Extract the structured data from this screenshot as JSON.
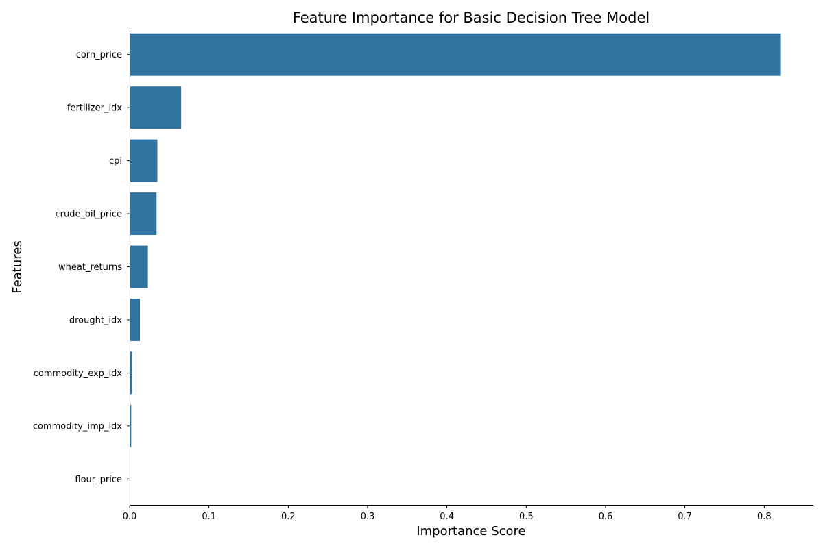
{
  "chart_data": {
    "type": "bar",
    "orientation": "horizontal",
    "title": "Feature Importance for Basic Decision Tree Model",
    "xlabel": "Importance Score",
    "ylabel": "Features",
    "categories": [
      "corn_price",
      "fertilizer_idx",
      "cpi",
      "crude_oil_price",
      "wheat_returns",
      "drought_idx",
      "commodity_exp_idx",
      "commodity_imp_idx",
      "flour_price"
    ],
    "values": [
      0.821,
      0.065,
      0.035,
      0.034,
      0.023,
      0.013,
      0.003,
      0.002,
      0.0
    ],
    "xlim": [
      0,
      0.862
    ],
    "xticks": [
      0.0,
      0.1,
      0.2,
      0.3,
      0.4,
      0.5,
      0.6,
      0.7,
      0.8
    ],
    "xtick_labels": [
      "0.0",
      "0.1",
      "0.2",
      "0.3",
      "0.4",
      "0.5",
      "0.6",
      "0.7",
      "0.8"
    ],
    "grid": false,
    "bar_color": "#3274a1"
  }
}
